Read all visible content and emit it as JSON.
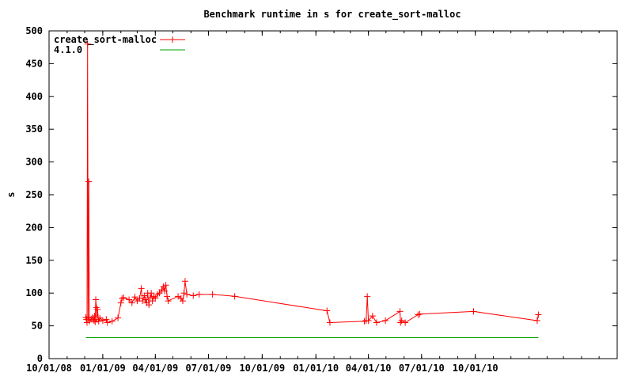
{
  "chart_data": {
    "type": "line",
    "title": "Benchmark runtime in s for create_sort-malloc",
    "ylabel": "s",
    "xlabel": "",
    "ylim": [
      0,
      500
    ],
    "yticks": [
      0,
      50,
      100,
      150,
      200,
      250,
      300,
      350,
      400,
      450,
      500
    ],
    "xlim": [
      "2008-10-01",
      "2011-06-01"
    ],
    "xticks": [
      {
        "date": "2008-10-01",
        "label": "10/01/08"
      },
      {
        "date": "2009-01-01",
        "label": "01/01/09"
      },
      {
        "date": "2009-04-01",
        "label": "04/01/09"
      },
      {
        "date": "2009-07-01",
        "label": "07/01/09"
      },
      {
        "date": "2009-10-01",
        "label": "10/01/09"
      },
      {
        "date": "2010-01-01",
        "label": "01/01/10"
      },
      {
        "date": "2010-04-01",
        "label": "04/01/10"
      },
      {
        "date": "2010-07-01",
        "label": "07/01/10"
      },
      {
        "date": "2010-10-01",
        "label": "10/01/10"
      }
    ],
    "legend_position": "top-left",
    "grid": false,
    "series": [
      {
        "name": "create_sort-malloc",
        "color": "#ff0000",
        "marker": "plus",
        "points": [
          [
            "2008-12-03",
            63
          ],
          [
            "2008-12-04",
            60
          ],
          [
            "2008-12-05",
            55
          ],
          [
            "2008-12-06",
            480
          ],
          [
            "2008-12-07",
            62
          ],
          [
            "2008-12-08",
            270
          ],
          [
            "2008-12-09",
            57
          ],
          [
            "2008-12-12",
            60
          ],
          [
            "2008-12-15",
            63
          ],
          [
            "2008-12-17",
            58
          ],
          [
            "2008-12-18",
            65
          ],
          [
            "2008-12-19",
            56
          ],
          [
            "2008-12-20",
            90
          ],
          [
            "2008-12-21",
            78
          ],
          [
            "2008-12-22",
            60
          ],
          [
            "2008-12-23",
            75
          ],
          [
            "2008-12-25",
            57
          ],
          [
            "2008-12-27",
            62
          ],
          [
            "2009-01-01",
            58
          ],
          [
            "2009-01-07",
            60
          ],
          [
            "2009-01-09",
            55
          ],
          [
            "2009-01-17",
            57
          ],
          [
            "2009-01-27",
            62
          ],
          [
            "2009-02-01",
            85
          ],
          [
            "2009-02-03",
            92
          ],
          [
            "2009-02-06",
            93
          ],
          [
            "2009-02-15",
            90
          ],
          [
            "2009-02-20",
            85
          ],
          [
            "2009-02-25",
            94
          ],
          [
            "2009-03-01",
            88
          ],
          [
            "2009-03-05",
            92
          ],
          [
            "2009-03-08",
            107
          ],
          [
            "2009-03-10",
            88
          ],
          [
            "2009-03-13",
            96
          ],
          [
            "2009-03-15",
            90
          ],
          [
            "2009-03-17",
            85
          ],
          [
            "2009-03-19",
            100
          ],
          [
            "2009-03-21",
            82
          ],
          [
            "2009-03-23",
            93
          ],
          [
            "2009-03-25",
            100
          ],
          [
            "2009-03-27",
            88
          ],
          [
            "2009-03-29",
            95
          ],
          [
            "2009-04-01",
            92
          ],
          [
            "2009-04-05",
            98
          ],
          [
            "2009-04-08",
            100
          ],
          [
            "2009-04-12",
            105
          ],
          [
            "2009-04-15",
            110
          ],
          [
            "2009-04-17",
            103
          ],
          [
            "2009-04-19",
            112
          ],
          [
            "2009-04-21",
            95
          ],
          [
            "2009-04-23",
            88
          ],
          [
            "2009-05-10",
            95
          ],
          [
            "2009-05-15",
            92
          ],
          [
            "2009-05-18",
            88
          ],
          [
            "2009-05-20",
            100
          ],
          [
            "2009-05-22",
            118
          ],
          [
            "2009-05-25",
            98
          ],
          [
            "2009-06-05",
            96
          ],
          [
            "2009-06-15",
            98
          ],
          [
            "2009-07-08",
            98
          ],
          [
            "2009-08-15",
            95
          ],
          [
            "2010-01-20",
            73
          ],
          [
            "2010-01-25",
            55
          ],
          [
            "2010-03-25",
            57
          ],
          [
            "2010-03-28",
            58
          ],
          [
            "2010-03-30",
            95
          ],
          [
            "2010-04-01",
            58
          ],
          [
            "2010-04-08",
            65
          ],
          [
            "2010-04-15",
            55
          ],
          [
            "2010-04-30",
            58
          ],
          [
            "2010-05-25",
            72
          ],
          [
            "2010-05-26",
            55
          ],
          [
            "2010-05-28",
            58
          ],
          [
            "2010-06-03",
            55
          ],
          [
            "2010-06-25",
            67
          ],
          [
            "2010-06-28",
            68
          ],
          [
            "2010-09-28",
            72
          ],
          [
            "2011-01-15",
            58
          ],
          [
            "2011-01-17",
            67
          ]
        ]
      },
      {
        "name": "4.1.0",
        "color": "#00a000",
        "marker": "none",
        "points": [
          [
            "2008-12-03",
            32
          ],
          [
            "2011-01-17",
            32
          ]
        ]
      }
    ]
  }
}
